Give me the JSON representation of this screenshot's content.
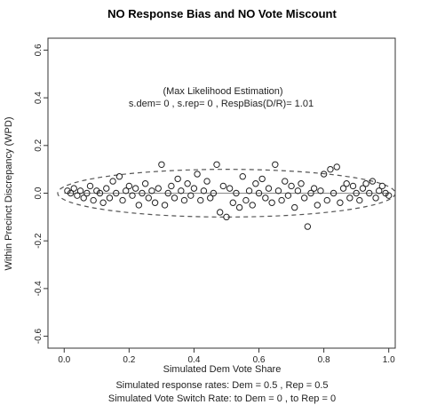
{
  "chart_data": {
    "type": "scatter",
    "title": "NO Response Bias and NO Vote Miscount",
    "xlabel": "Simulated Dem Vote Share",
    "ylabel": "Within Precinct Discrepancy (WPD)",
    "xlim": [
      -0.05,
      1.02
    ],
    "ylim": [
      -0.65,
      0.65
    ],
    "x_ticks": [
      "0.0",
      "0.2",
      "0.4",
      "0.6",
      "0.8",
      "1.0"
    ],
    "y_ticks": [
      "-0.6",
      "-0.4",
      "-0.2",
      "0.0",
      "0.2",
      "0.4",
      "0.6"
    ],
    "annotation_line1": "(Max Likelihood Estimation)",
    "annotation_line2": "s.dem= 0 , s.rep= 0 , RespBias(D/R)= 1.01",
    "caption_line1": "Simulated response rates: Dem = 0.5 , Rep = 0.5",
    "caption_line2": "Simulated Vote Switch Rate: to Dem = 0 , to Rep = 0",
    "reference_line_y": 0.0,
    "envelope": {
      "x_center": 0.5,
      "half_width": 0.52,
      "half_height": 0.1
    },
    "points": [
      [
        0.01,
        0.01
      ],
      [
        0.02,
        0.0
      ],
      [
        0.03,
        0.02
      ],
      [
        0.04,
        -0.01
      ],
      [
        0.05,
        0.01
      ],
      [
        0.06,
        -0.02
      ],
      [
        0.07,
        0.0
      ],
      [
        0.08,
        0.03
      ],
      [
        0.09,
        -0.03
      ],
      [
        0.1,
        0.01
      ],
      [
        0.11,
        0.0
      ],
      [
        0.12,
        -0.04
      ],
      [
        0.13,
        0.02
      ],
      [
        0.14,
        -0.02
      ],
      [
        0.15,
        0.05
      ],
      [
        0.16,
        0.0
      ],
      [
        0.17,
        0.07
      ],
      [
        0.18,
        -0.03
      ],
      [
        0.19,
        0.01
      ],
      [
        0.2,
        0.03
      ],
      [
        0.21,
        -0.01
      ],
      [
        0.22,
        0.02
      ],
      [
        0.23,
        -0.05
      ],
      [
        0.24,
        0.0
      ],
      [
        0.25,
        0.04
      ],
      [
        0.26,
        -0.02
      ],
      [
        0.27,
        0.01
      ],
      [
        0.28,
        -0.04
      ],
      [
        0.29,
        0.02
      ],
      [
        0.3,
        0.12
      ],
      [
        0.31,
        -0.05
      ],
      [
        0.32,
        0.0
      ],
      [
        0.33,
        0.03
      ],
      [
        0.34,
        -0.02
      ],
      [
        0.35,
        0.06
      ],
      [
        0.36,
        0.01
      ],
      [
        0.37,
        -0.03
      ],
      [
        0.38,
        0.04
      ],
      [
        0.39,
        -0.01
      ],
      [
        0.4,
        0.02
      ],
      [
        0.41,
        0.08
      ],
      [
        0.42,
        -0.03
      ],
      [
        0.43,
        0.01
      ],
      [
        0.44,
        0.05
      ],
      [
        0.45,
        -0.02
      ],
      [
        0.46,
        0.0
      ],
      [
        0.47,
        0.12
      ],
      [
        0.48,
        -0.08
      ],
      [
        0.49,
        0.03
      ],
      [
        0.5,
        -0.1
      ],
      [
        0.51,
        0.02
      ],
      [
        0.52,
        -0.04
      ],
      [
        0.53,
        0.0
      ],
      [
        0.54,
        -0.06
      ],
      [
        0.55,
        0.07
      ],
      [
        0.56,
        -0.03
      ],
      [
        0.57,
        0.01
      ],
      [
        0.58,
        -0.05
      ],
      [
        0.59,
        0.04
      ],
      [
        0.6,
        0.0
      ],
      [
        0.61,
        0.06
      ],
      [
        0.62,
        -0.02
      ],
      [
        0.63,
        0.02
      ],
      [
        0.64,
        -0.04
      ],
      [
        0.65,
        0.12
      ],
      [
        0.66,
        0.01
      ],
      [
        0.67,
        -0.03
      ],
      [
        0.68,
        0.05
      ],
      [
        0.69,
        -0.01
      ],
      [
        0.7,
        0.03
      ],
      [
        0.71,
        -0.06
      ],
      [
        0.72,
        0.01
      ],
      [
        0.73,
        0.04
      ],
      [
        0.74,
        -0.02
      ],
      [
        0.75,
        -0.14
      ],
      [
        0.76,
        0.0
      ],
      [
        0.77,
        0.02
      ],
      [
        0.78,
        -0.05
      ],
      [
        0.79,
        0.01
      ],
      [
        0.8,
        0.08
      ],
      [
        0.81,
        -0.03
      ],
      [
        0.82,
        0.1
      ],
      [
        0.83,
        0.0
      ],
      [
        0.84,
        0.11
      ],
      [
        0.85,
        -0.04
      ],
      [
        0.86,
        0.02
      ],
      [
        0.87,
        0.04
      ],
      [
        0.88,
        -0.02
      ],
      [
        0.89,
        0.03
      ],
      [
        0.9,
        0.0
      ],
      [
        0.91,
        -0.03
      ],
      [
        0.92,
        0.02
      ],
      [
        0.93,
        0.04
      ],
      [
        0.94,
        0.0
      ],
      [
        0.95,
        0.05
      ],
      [
        0.96,
        -0.02
      ],
      [
        0.97,
        0.01
      ],
      [
        0.98,
        0.03
      ],
      [
        0.99,
        0.0
      ],
      [
        1.0,
        -0.01
      ]
    ]
  }
}
